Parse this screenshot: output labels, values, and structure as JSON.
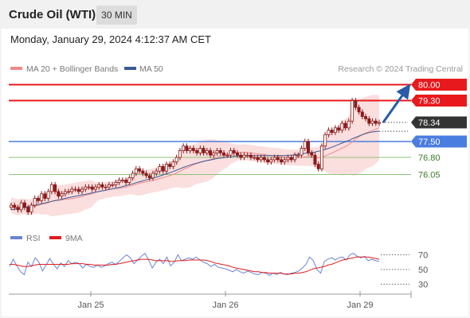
{
  "header": {
    "title": "Crude Oil (WTI)",
    "timeframe": "30 MIN"
  },
  "datetime": "Monday, January 29, 2024 4:12:37 AM CET",
  "legend": {
    "ma_bb": "MA 20 + Bollinger Bands",
    "ma50": "MA 50"
  },
  "credit": "Research © 2024 Trading Central",
  "rsi_legend": {
    "rsi": "RSI",
    "ma9": "9MA"
  },
  "colors": {
    "resistance": "#e8191d",
    "pivot": "#4a7de0",
    "support": "#8cc47a",
    "candle": "#8b1a1a",
    "bb_fill": "#f9d3d3",
    "ma50": "#3a5a96",
    "arrow": "#2a5aa8",
    "price_tag": "#333333",
    "rsi": "#6a84d8",
    "ma9": "#e01b1b"
  },
  "chart_data": [
    {
      "type": "candlestick",
      "title": "Crude Oil (WTI)",
      "x_ticks": [
        "Jan 25",
        "Jan 26",
        "Jan 29"
      ],
      "levels": [
        {
          "value": 80.0,
          "label": "80.00",
          "kind": "resistance"
        },
        {
          "value": 79.3,
          "label": "79.30",
          "kind": "resistance"
        },
        {
          "value": 78.34,
          "label": "78.34",
          "kind": "last"
        },
        {
          "value": 77.5,
          "label": "77.50",
          "kind": "pivot"
        },
        {
          "value": 76.8,
          "label": "76.80",
          "kind": "support"
        },
        {
          "value": 76.05,
          "label": "76.05",
          "kind": "support"
        }
      ],
      "price_close": [
        74.7,
        74.6,
        74.5,
        74.8,
        74.6,
        74.4,
        74.7,
        75.0,
        74.9,
        75.2,
        75.0,
        75.3,
        75.6,
        75.3,
        75.1,
        75.2,
        75.3,
        75.3,
        75.4,
        75.4,
        75.3,
        75.4,
        75.5,
        75.5,
        75.4,
        75.5,
        75.6,
        75.5,
        75.5,
        75.6,
        75.6,
        75.7,
        75.8,
        75.8,
        75.7,
        75.9,
        76.1,
        76.3,
        76.2,
        76.1,
        76.0,
        75.9,
        76.1,
        76.2,
        76.4,
        76.2,
        76.5,
        76.4,
        76.6,
        76.8,
        77.1,
        77.3,
        77.1,
        77.2,
        77.1,
        77.0,
        77.2,
        77.0,
        77.1,
        76.9,
        77.0,
        77.1,
        77.0,
        76.9,
        76.9,
        77.1,
        77.0,
        76.9,
        76.8,
        76.9,
        76.9,
        76.8,
        76.8,
        76.7,
        76.8,
        76.7,
        76.6,
        76.7,
        76.8,
        76.7,
        76.6,
        76.7,
        76.8,
        76.7,
        76.9,
        76.9,
        77.2,
        77.5,
        77.0,
        76.9,
        76.5,
        76.3,
        77.3,
        77.8,
        78.0,
        77.9,
        78.1,
        78.0,
        78.3,
        78.1,
        78.4,
        79.3,
        79.0,
        78.8,
        78.6,
        78.5,
        78.3,
        78.4,
        78.3,
        78.34
      ],
      "ma50": [
        74.5,
        74.52,
        74.55,
        74.58,
        74.6,
        74.63,
        74.66,
        74.7,
        74.73,
        74.76,
        74.8,
        74.83,
        74.87,
        74.9,
        74.93,
        74.96,
        75.0,
        75.03,
        75.06,
        75.09,
        75.12,
        75.15,
        75.18,
        75.21,
        75.24,
        75.27,
        75.3,
        75.33,
        75.36,
        75.39,
        75.42,
        75.45,
        75.48,
        75.52,
        75.56,
        75.6,
        75.64,
        75.69,
        75.73,
        75.77,
        75.81,
        75.85,
        75.89,
        75.93,
        75.98,
        76.03,
        76.08,
        76.13,
        76.18,
        76.24,
        76.3,
        76.36,
        76.41,
        76.46,
        76.51,
        76.55,
        76.59,
        76.63,
        76.66,
        76.69,
        76.72,
        76.75,
        76.77,
        76.79,
        76.81,
        76.83,
        76.85,
        76.86,
        76.87,
        76.88,
        76.88,
        76.88,
        76.88,
        76.88,
        76.88,
        76.88,
        76.88,
        76.88,
        76.88,
        76.88,
        76.88,
        76.88,
        76.89,
        76.9,
        76.92,
        76.94,
        76.96,
        76.98,
        77.0,
        77.02,
        77.04,
        77.07,
        77.11,
        77.15,
        77.2,
        77.25,
        77.31,
        77.37,
        77.43,
        77.49,
        77.55,
        77.62,
        77.68,
        77.74,
        77.8,
        77.85,
        77.89,
        77.92,
        77.94,
        77.95
      ]
    },
    {
      "type": "line",
      "title": "RSI",
      "yticks": [
        30,
        50,
        70
      ],
      "ylim": [
        20,
        80
      ],
      "series": [
        {
          "name": "RSI",
          "values": [
            54,
            64,
            55,
            47,
            43,
            60,
            54,
            66,
            60,
            48,
            56,
            65,
            57,
            51,
            59,
            54,
            62,
            58,
            60,
            58,
            52,
            57,
            54,
            53,
            56,
            53,
            55,
            58,
            60,
            57,
            61,
            66,
            70,
            66,
            58,
            63,
            68,
            72,
            63,
            52,
            60,
            64,
            58,
            67,
            55,
            60,
            70,
            62,
            64,
            66,
            64,
            67,
            63,
            60,
            58,
            54,
            57,
            53,
            52,
            51,
            49,
            47,
            50,
            47,
            45,
            48,
            46,
            44,
            43,
            46,
            45,
            42,
            45,
            43,
            46,
            44,
            43,
            45,
            46,
            48,
            52,
            57,
            67,
            62,
            50,
            45,
            61,
            64,
            66,
            63,
            66,
            67,
            63,
            70,
            72,
            68,
            66,
            68,
            62,
            64,
            62,
            61
          ]
        },
        {
          "name": "9MA",
          "values": [
            57,
            57,
            56,
            55,
            54,
            54,
            55,
            56,
            57,
            57,
            57,
            57,
            57,
            57,
            57,
            57,
            57,
            58,
            58,
            58,
            58,
            57,
            57,
            56,
            56,
            56,
            56,
            56,
            57,
            57,
            58,
            59,
            60,
            61,
            62,
            63,
            64,
            64,
            64,
            63,
            62,
            62,
            62,
            62,
            61,
            61,
            62,
            62,
            62,
            63,
            63,
            63,
            63,
            63,
            62,
            61,
            59,
            58,
            57,
            56,
            55,
            53,
            52,
            51,
            50,
            49,
            48,
            47,
            47,
            46,
            46,
            45,
            45,
            45,
            45,
            44,
            44,
            44,
            45,
            45,
            46,
            47,
            49,
            51,
            52,
            53,
            54,
            56,
            57,
            59,
            61,
            63,
            64,
            65,
            66,
            67,
            67,
            67,
            67,
            66,
            65,
            64
          ]
        }
      ]
    }
  ]
}
